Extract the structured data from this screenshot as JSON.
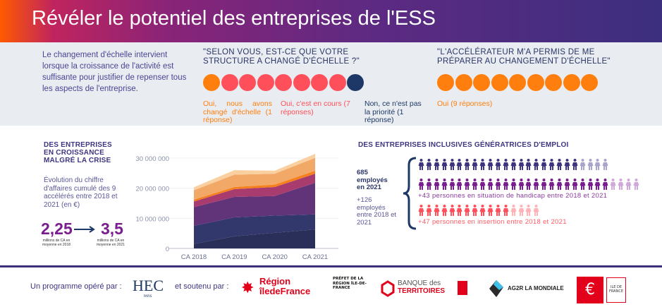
{
  "header": {
    "title": "Révéler le potentiel des entreprises de l'ESS"
  },
  "intro": {
    "text": "Le changement d'échelle intervient lorsque la croissance de l'activité est suffisante pour justifier de repenser tous les aspects de l'entreprise."
  },
  "survey1": {
    "question": "\"SELON VOUS, EST-CE QUE VOTRE STRUCTURE A CHANGÉ D'ÉCHELLE ?\"",
    "answers": [
      {
        "label": "Oui, nous avons changé d'échelle (1 réponse)",
        "count": 1,
        "color": "#ff7f0e"
      },
      {
        "label": "Oui, c'est en cours (7 réponses)",
        "count": 7,
        "color": "#ff4f5a"
      },
      {
        "label": "Non, ce n'est pas la priorité (1 réponse)",
        "count": 1,
        "color": "#1d3866"
      }
    ]
  },
  "survey2": {
    "question": "\"L'ACCÉLÉRATEUR M'A PERMIS DE ME PRÉPARER AU CHANGEMENT D'ÉCHELLE\"",
    "answers": [
      {
        "label": "Oui (9 réponses)",
        "count": 9,
        "color": "#ff7f0e"
      }
    ]
  },
  "growth": {
    "heading": "DES ENTREPRISES EN CROISSANCE MALGRÉ LA CRISE",
    "description": "Évolution du chiffre d'affaires cumulé des 9 accélérés entre 2018 et 2021 (en €)",
    "from_value": "2,25",
    "from_caption": "millions de CA en moyenne en 2018",
    "to_value": "3,5",
    "to_caption": "millions de CA en moyenne en 2021"
  },
  "chart_data": {
    "type": "area",
    "stacked": true,
    "categories": [
      "CA 2018",
      "CA 2019",
      "CA 2020",
      "CA 2021"
    ],
    "y_ticks": [
      "0",
      "10 000 000",
      "20 000 000",
      "30 000 000"
    ],
    "ylim": [
      0,
      32000000
    ],
    "grid": true,
    "series": [
      {
        "color": "#2a2f5a",
        "values": [
          1500000,
          4000000,
          5200000,
          6300000
        ]
      },
      {
        "color": "#33386c",
        "values": [
          6000000,
          6300000,
          5700000,
          5000000
        ]
      },
      {
        "color": "#613479",
        "values": [
          6200000,
          6800000,
          6500000,
          10500000
        ]
      },
      {
        "color": "#a83c6e",
        "values": [
          1900000,
          2600000,
          3000000,
          3000000
        ]
      },
      {
        "color": "#f5801e",
        "values": [
          600000,
          700000,
          800000,
          1000000
        ]
      },
      {
        "color": "#f2a866",
        "values": [
          3100000,
          4100000,
          3600000,
          4300000
        ]
      },
      {
        "color": "#fad0a0",
        "values": [
          1000000,
          1500000,
          1000000,
          1300000
        ]
      }
    ]
  },
  "employment": {
    "heading": "DES ENTREPRISES INCLUSIVES GÉNÉRATRICES D'EMPLOI",
    "total": "685 employés en 2021",
    "growth": "+126 employés entre 2018 et 2021",
    "rows": [
      {
        "label": "",
        "solid": 21,
        "faded": 4,
        "color": "#3d3580",
        "faded_color": "#a9a4cc"
      },
      {
        "label": "+43 personnes en situation de handicap entre 2018 et 2021",
        "solid": 25,
        "faded": 4,
        "color": "#7a1d8f",
        "faded_color": "#cfa9da"
      },
      {
        "label": "+47 personnes en insertion entre 2018 et 2021",
        "solid": 12,
        "faded": 4,
        "color": "#ff4f5a",
        "faded_color": "#ffb3b7"
      }
    ]
  },
  "footer": {
    "operated_by": "Un programme opéré par :",
    "supported_by": "et soutenu par :",
    "logos": {
      "hec": "HEC",
      "hec_sub": "PARIS",
      "region1": "Région",
      "region2": "îledeFrance",
      "prefet": "PRÉFET DE LA RÉGION ÎLE-DE-FRANCE",
      "bdt1": "BANQUE des",
      "bdt2": "TERRITOIRES",
      "ag2r": "AG2R LA MONDIALE",
      "ce": "ILE DE FRANCE"
    }
  }
}
